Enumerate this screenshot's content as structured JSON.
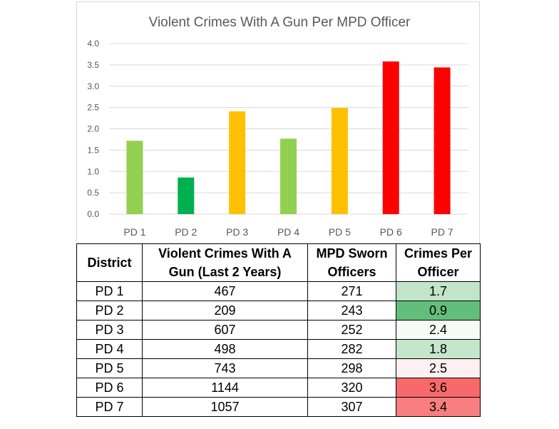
{
  "chart_data": {
    "type": "bar",
    "title": "Violent Crimes With A Gun Per MPD Officer",
    "categories": [
      "PD 1",
      "PD 2",
      "PD 3",
      "PD 4",
      "PD 5",
      "PD 6",
      "PD 7"
    ],
    "values": [
      1.72,
      0.86,
      2.41,
      1.77,
      2.49,
      3.58,
      3.44
    ],
    "bar_colors": [
      "#92d050",
      "#00b050",
      "#ffc000",
      "#92d050",
      "#ffc000",
      "#ff0000",
      "#ff0000"
    ],
    "ylim": [
      0,
      4.0
    ],
    "yticks": [
      "0.0",
      "0.5",
      "1.0",
      "1.5",
      "2.0",
      "2.5",
      "3.0",
      "3.5",
      "4.0"
    ],
    "grid": true
  },
  "table": {
    "headers": {
      "district": "District",
      "crimes_line1": "Violent Crimes With A",
      "crimes_line2": "Gun (Last 2 Years)",
      "officers_line1": "MPD Sworn",
      "officers_line2": "Officers",
      "per_line1": "Crimes Per",
      "per_line2": "Officer"
    },
    "rows": [
      {
        "district": "PD 1",
        "crimes": "467",
        "officers": "271",
        "per_officer": "1.7",
        "shade": "#c2e4c8"
      },
      {
        "district": "PD 2",
        "crimes": "209",
        "officers": "243",
        "per_officer": "0.9",
        "shade": "#63be7b"
      },
      {
        "district": "PD 3",
        "crimes": "607",
        "officers": "252",
        "per_officer": "2.4",
        "shade": "#f7fbf8"
      },
      {
        "district": "PD 4",
        "crimes": "498",
        "officers": "282",
        "per_officer": "1.8",
        "shade": "#c6e6cb"
      },
      {
        "district": "PD 5",
        "crimes": "743",
        "officers": "298",
        "per_officer": "2.5",
        "shade": "#fcf0f2"
      },
      {
        "district": "PD 6",
        "crimes": "1144",
        "officers": "320",
        "per_officer": "3.6",
        "shade": "#f8696b"
      },
      {
        "district": "PD 7",
        "crimes": "1057",
        "officers": "307",
        "per_officer": "3.4",
        "shade": "#f97e80"
      }
    ]
  }
}
